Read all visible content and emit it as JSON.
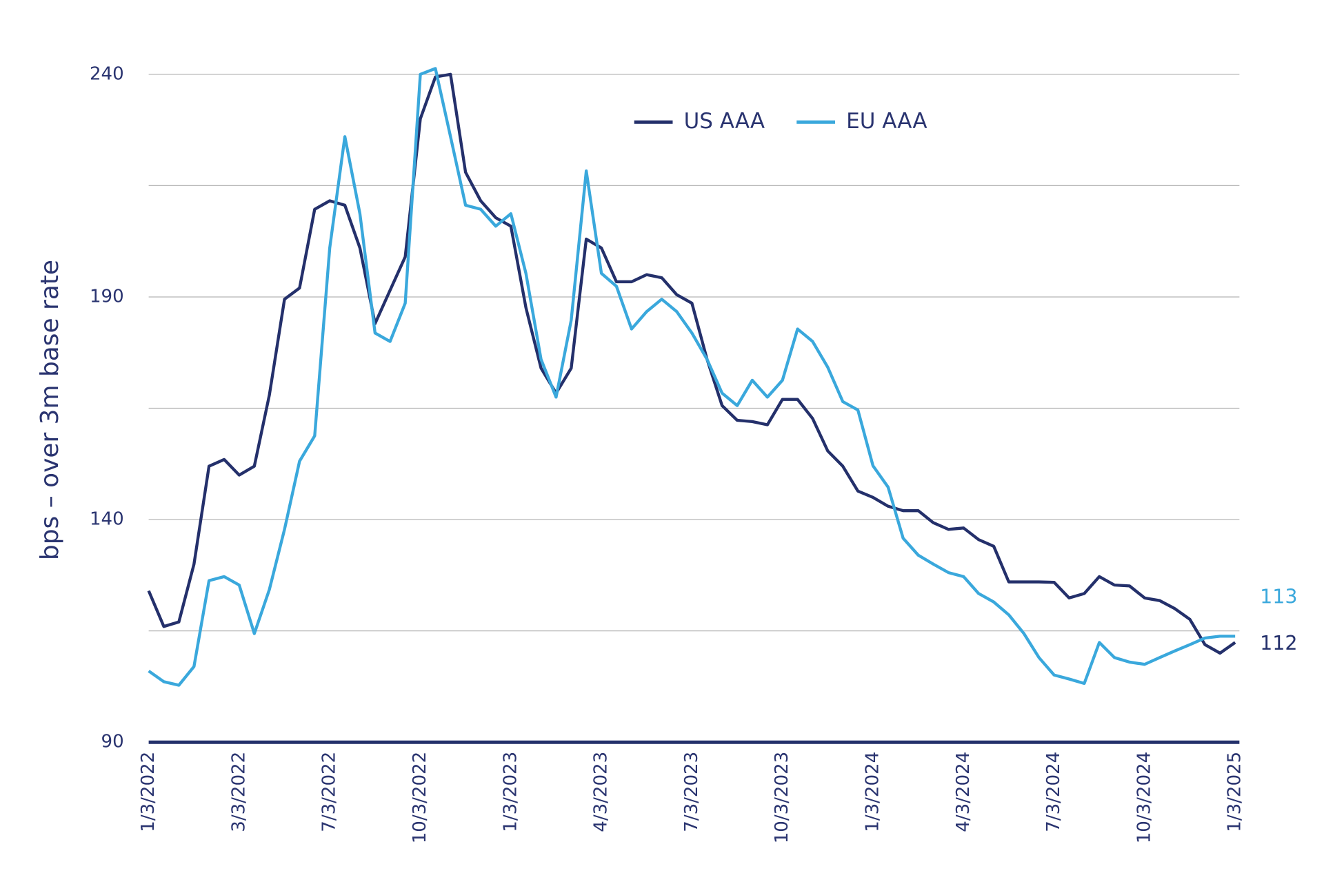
{
  "chart_data": {
    "type": "line",
    "y_label": "bps – over 3m base rate",
    "categories": [
      "1/3/2022",
      null,
      null,
      null,
      null,
      null,
      "3/3/2022",
      null,
      null,
      null,
      null,
      null,
      "7/3/2022",
      null,
      null,
      null,
      null,
      null,
      "10/3/2022",
      null,
      null,
      null,
      null,
      null,
      "1/3/2023",
      null,
      null,
      null,
      null,
      null,
      "4/3/2023",
      null,
      null,
      null,
      null,
      null,
      "7/3/2023",
      null,
      null,
      null,
      null,
      null,
      "10/3/2023",
      null,
      null,
      null,
      null,
      null,
      "1/3/2024",
      null,
      null,
      null,
      null,
      null,
      "4/3/2024",
      null,
      null,
      null,
      null,
      null,
      "7/3/2024",
      null,
      null,
      null,
      null,
      null,
      "10/3/2024",
      null,
      null,
      null,
      null,
      null,
      "1/3/2025"
    ],
    "series": [
      {
        "name": "US AAA",
        "color": "#24306b",
        "end_label": "112",
        "values": [
          124,
          116,
          117,
          130,
          152,
          153.5,
          150,
          152,
          168,
          189.5,
          192,
          209.7,
          211.6,
          210.6,
          201,
          184,
          191.5,
          199,
          230,
          239.4,
          240,
          218,
          211.6,
          207.8,
          205.9,
          187.6,
          174,
          168.4,
          174,
          203,
          201,
          193.4,
          193.4,
          195,
          194.3,
          190.5,
          188.6,
          176,
          165.6,
          162.3,
          162,
          161.3,
          167,
          167,
          162.7,
          155.4,
          152,
          146.4,
          145,
          143,
          142,
          142,
          139.3,
          137.8,
          138.1,
          135.5,
          134,
          126,
          126,
          126,
          125.9,
          122.4,
          123.4,
          127.2,
          125.3,
          125.1,
          122.4,
          121.8,
          120,
          117.6,
          111.9,
          110,
          112.4
        ]
      },
      {
        "name": "EU AAA",
        "color": "#3aa8dc",
        "end_label": "113",
        "values": [
          106,
          103.6,
          102.8,
          107,
          126.3,
          127.2,
          125.3,
          114.4,
          124.3,
          137.8,
          153.1,
          158.8,
          201,
          226,
          208.7,
          181.9,
          180,
          188.6,
          240,
          241.3,
          226,
          210.6,
          209.7,
          205.9,
          208.7,
          195.3,
          176,
          167.5,
          184.8,
          218.3,
          195.3,
          192.4,
          182.8,
          186.7,
          189.5,
          186.7,
          181.9,
          176,
          168.4,
          165.6,
          171.3,
          167.5,
          171.3,
          182.8,
          180,
          174.2,
          166.5,
          164.6,
          152.1,
          147.3,
          135.8,
          132,
          130,
          128.1,
          127.2,
          123.4,
          121.5,
          118.6,
          114.4,
          109,
          105.1,
          104.2,
          103.2,
          112.4,
          109,
          108,
          107.5,
          109,
          110.5,
          111.9,
          113.4,
          113.8,
          113.8
        ]
      }
    ],
    "ylim": [
      90,
      240
    ],
    "yticks": [
      90,
      140,
      190,
      240
    ],
    "grid_lines": [
      115,
      140,
      165,
      190,
      215,
      240
    ],
    "legend": "top"
  }
}
